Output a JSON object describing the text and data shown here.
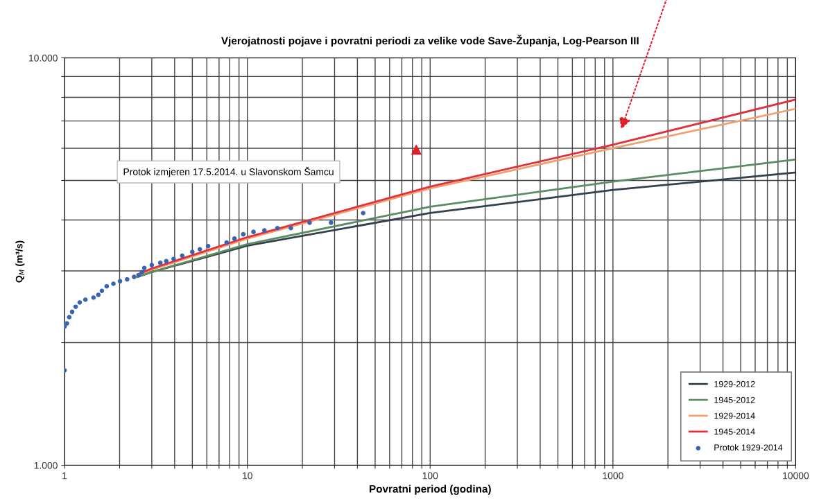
{
  "chart_data": {
    "type": "line",
    "title": "Vjerojatnosti pojave i povratni periodi za velike vode Save-Županja, Log-Pearson III",
    "xlabel": "Povratni period (godina)",
    "ylabel": "Q$_{M}$ (m³/s)",
    "log": "xy",
    "xlim": [
      1,
      10000
    ],
    "ylim": [
      1000,
      10000
    ],
    "xticks": [
      1,
      {
        "value": 2,
        "label": null
      },
      {
        "value": 3,
        "label": null
      },
      {
        "value": 4,
        "label": null
      },
      {
        "value": 5,
        "label": null
      },
      {
        "value": 6,
        "label": null
      },
      {
        "value": 7,
        "label": null
      },
      {
        "value": 8,
        "label": null
      },
      {
        "value": 9,
        "label": null
      },
      10,
      {
        "value": 20,
        "label": null
      },
      {
        "value": 30,
        "label": null
      },
      {
        "value": 40,
        "label": null
      },
      {
        "value": 50,
        "label": null
      },
      {
        "value": 60,
        "label": null
      },
      {
        "value": 70,
        "label": null
      },
      {
        "value": 80,
        "label": null
      },
      {
        "value": 90,
        "label": null
      },
      100,
      {
        "value": 200,
        "label": null
      },
      {
        "value": 300,
        "label": null
      },
      {
        "value": 400,
        "label": null
      },
      {
        "value": 500,
        "label": null
      },
      {
        "value": 600,
        "label": null
      },
      {
        "value": 700,
        "label": null
      },
      {
        "value": 800,
        "label": null
      },
      {
        "value": 900,
        "label": null
      },
      1000,
      {
        "value": 2000,
        "label": null
      },
      {
        "value": 3000,
        "label": null
      },
      {
        "value": 4000,
        "label": null
      },
      {
        "value": 5000,
        "label": null
      },
      {
        "value": 6000,
        "label": null
      },
      {
        "value": 7000,
        "label": null
      },
      {
        "value": 8000,
        "label": null
      },
      {
        "value": 9000,
        "label": null
      },
      10000
    ],
    "yticks": [
      {
        "value": 1000,
        "label": "1.000"
      },
      {
        "value": 2000,
        "label": null
      },
      {
        "value": 3000,
        "label": null
      },
      {
        "value": 4000,
        "label": null
      },
      {
        "value": 5000,
        "label": null
      },
      {
        "value": 6000,
        "label": null
      },
      {
        "value": 7000,
        "label": null
      },
      {
        "value": 8000,
        "label": null
      },
      {
        "value": 9000,
        "label": null
      },
      {
        "value": 10000,
        "label": "10.000"
      }
    ],
    "grid": true,
    "legend": "bottom right",
    "series": [
      {
        "name": "1929-2012",
        "color": "#34404c",
        "marker": "none",
        "x": [
          2.5,
          3,
          10,
          100,
          1000,
          10000
        ],
        "values": [
          2900,
          2980,
          3460,
          4160,
          4740,
          5230
        ]
      },
      {
        "name": "1945-2012",
        "color": "#5c8c62",
        "marker": "none",
        "x": [
          2.5,
          3,
          10,
          100,
          1000,
          10000
        ],
        "values": [
          2900,
          2980,
          3490,
          4310,
          4970,
          5630
        ]
      },
      {
        "name": "1929-2014",
        "color": "#f0a070",
        "marker": "none",
        "x": [
          2.5,
          3,
          10,
          100,
          1000,
          10000
        ],
        "values": [
          2930,
          3020,
          3600,
          4780,
          6000,
          7500
        ]
      },
      {
        "name": "1945-2014",
        "color": "#e0303c",
        "marker": "none",
        "x": [
          2.5,
          3,
          10,
          100,
          1000,
          10000
        ],
        "values": [
          2940,
          3040,
          3630,
          4830,
          6120,
          7900
        ]
      },
      {
        "name": "Protok 1929-2014",
        "type": "scatter",
        "color": "#3a64b0",
        "marker": "circle",
        "x": [
          1.0,
          1.0,
          1.03,
          1.06,
          1.1,
          1.15,
          1.21,
          1.3,
          1.44,
          1.53,
          1.6,
          1.7,
          1.85,
          2.01,
          2.2,
          2.4,
          2.55,
          2.65,
          2.73,
          3.0,
          3.34,
          3.6,
          3.95,
          4.4,
          5.0,
          5.5,
          6.1,
          7.7,
          8.5,
          9.5,
          10.8,
          12.4,
          14.6,
          17.3,
          21.9,
          28.7,
          43
        ],
        "values": [
          1710,
          2190,
          2230,
          2310,
          2380,
          2450,
          2510,
          2550,
          2580,
          2620,
          2680,
          2750,
          2790,
          2830,
          2860,
          2900,
          2930,
          2980,
          3050,
          3100,
          3140,
          3170,
          3210,
          3270,
          3340,
          3390,
          3450,
          3520,
          3600,
          3690,
          3740,
          3770,
          3820,
          3820,
          3940,
          3940,
          4160
        ]
      },
      {
        "type": "scatter",
        "color": "#e0202c",
        "marker": "triangle",
        "x": [
          84
        ],
        "values": [
          5950
        ]
      }
    ],
    "annotations": [
      "Protok izmjeren 17.5.2014. u Slavonskom Šamcu"
    ]
  }
}
